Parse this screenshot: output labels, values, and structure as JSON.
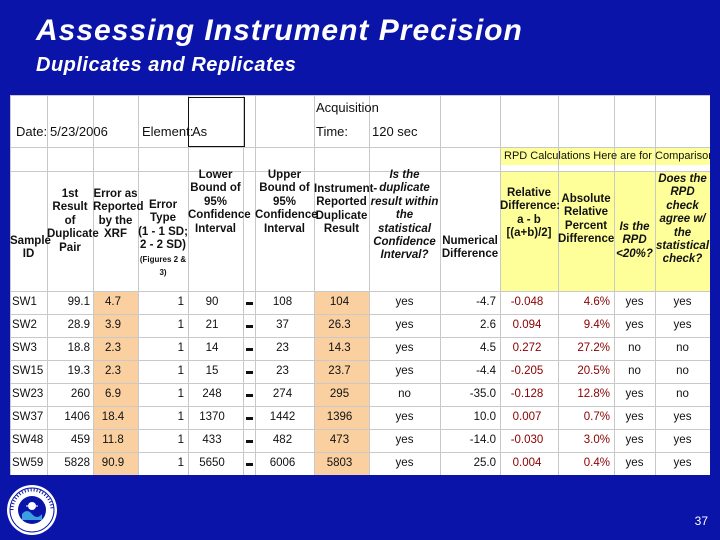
{
  "slide": {
    "title": "Assessing Instrument Precision",
    "subtitle": "Duplicates and Replicates",
    "page_number": "37"
  },
  "sheet": {
    "date_label": "Date:",
    "date_value": "5/23/2006",
    "element_label": "Element:",
    "element_value": "As",
    "acq_label_1": "Acquisition",
    "acq_label_2": "Time:",
    "acq_value": "120 sec",
    "rpd_note": "RPD Calculations Here are for Comparison ONLY",
    "headers": {
      "sample_id": [
        "Sample",
        "ID"
      ],
      "first_result": [
        "1st",
        "Result of",
        "Duplicate",
        "Pair"
      ],
      "error_xrf": [
        "Error as",
        "Reported",
        "by the",
        "XRF"
      ],
      "error_type": [
        "Error Type",
        "(1 - 1 SD;",
        "2 - 2 SD)",
        "(Figures 2 & 3)"
      ],
      "lower_bound": [
        "Lower",
        "Bound of",
        "95%",
        "Confidence",
        "Interval"
      ],
      "upper_bound": [
        "Upper",
        "Bound of",
        "95%",
        "Confidence",
        "Interval"
      ],
      "instrument_result": [
        "Instrument-",
        "Reported",
        "Duplicate",
        "Result"
      ],
      "within_interval": [
        "Is the duplicate",
        "result within the",
        "statistical",
        "Confidence",
        "Interval?"
      ],
      "numerical_difference": [
        "Numerical",
        "Difference"
      ],
      "relative_difference": [
        "Relative",
        "Difference:",
        "a - b",
        "[(a+b)/2]"
      ],
      "absolute_relative_percent": [
        "Absolute",
        "Relative",
        "Percent",
        "Difference"
      ],
      "rpd_lt_20": [
        "Is the",
        "RPD",
        "<20%?"
      ],
      "rpd_agree": [
        "Does the",
        "RPD check",
        "agree w/ the",
        "statistical",
        "check?"
      ]
    },
    "rows": [
      {
        "id": "SW1",
        "first": "99.1",
        "err": "4.7",
        "type": "1",
        "lower": "90",
        "upper": "108",
        "dup": "104",
        "within": "yes",
        "num_diff": "-4.7",
        "rel_diff": "-0.048",
        "abs_pct": "4.6%",
        "lt20": "yes",
        "agree": "yes"
      },
      {
        "id": "SW2",
        "first": "28.9",
        "err": "3.9",
        "type": "1",
        "lower": "21",
        "upper": "37",
        "dup": "26.3",
        "within": "yes",
        "num_diff": "2.6",
        "rel_diff": "0.094",
        "abs_pct": "9.4%",
        "lt20": "yes",
        "agree": "yes"
      },
      {
        "id": "SW3",
        "first": "18.8",
        "err": "2.3",
        "type": "1",
        "lower": "14",
        "upper": "23",
        "dup": "14.3",
        "within": "yes",
        "num_diff": "4.5",
        "rel_diff": "0.272",
        "abs_pct": "27.2%",
        "lt20": "no",
        "agree": "no"
      },
      {
        "id": "SW15",
        "first": "19.3",
        "err": "2.3",
        "type": "1",
        "lower": "15",
        "upper": "23",
        "dup": "23.7",
        "within": "yes",
        "num_diff": "-4.4",
        "rel_diff": "-0.205",
        "abs_pct": "20.5%",
        "lt20": "no",
        "agree": "no"
      },
      {
        "id": "SW23",
        "first": "260",
        "err": "6.9",
        "type": "1",
        "lower": "248",
        "upper": "274",
        "dup": "295",
        "within": "no",
        "num_diff": "-35.0",
        "rel_diff": "-0.128",
        "abs_pct": "12.8%",
        "lt20": "yes",
        "agree": "no"
      },
      {
        "id": "SW37",
        "first": "1406",
        "err": "18.4",
        "type": "1",
        "lower": "1370",
        "upper": "1442",
        "dup": "1396",
        "within": "yes",
        "num_diff": "10.0",
        "rel_diff": "0.007",
        "abs_pct": "0.7%",
        "lt20": "yes",
        "agree": "yes"
      },
      {
        "id": "SW48",
        "first": "459",
        "err": "11.8",
        "type": "1",
        "lower": "433",
        "upper": "482",
        "dup": "473",
        "within": "yes",
        "num_diff": "-14.0",
        "rel_diff": "-0.030",
        "abs_pct": "3.0%",
        "lt20": "yes",
        "agree": "yes"
      },
      {
        "id": "SW59",
        "first": "5828",
        "err": "90.9",
        "type": "1",
        "lower": "5650",
        "upper": "6006",
        "dup": "5803",
        "within": "yes",
        "num_diff": "25.0",
        "rel_diff": "0.004",
        "abs_pct": "0.4%",
        "lt20": "yes",
        "agree": "yes"
      }
    ]
  },
  "logo": {
    "name": "epa-seal-icon",
    "accent": "#0b14a8"
  }
}
